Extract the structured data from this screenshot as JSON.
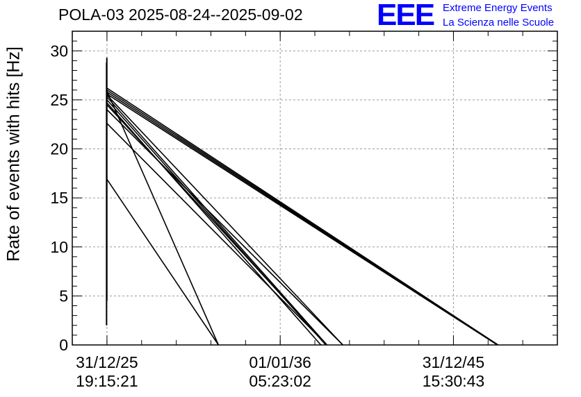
{
  "chart_data": {
    "type": "line",
    "title": "POLA-03 2025-08-24--2025-09-02",
    "ylabel": "Rate of events with hits [Hz]",
    "xlabel": "",
    "ylim": [
      0,
      32
    ],
    "yticks": [
      0,
      5,
      10,
      15,
      20,
      25,
      30
    ],
    "x_axis": "date-time",
    "xlim": [
      "31/12/23 07:18:00",
      "31/12/51 15:15:00"
    ],
    "xticks": [
      {
        "date": "31/12/25",
        "time": "19:15:21"
      },
      {
        "date": "01/01/36",
        "time": "05:23:02"
      },
      {
        "date": "31/12/45",
        "time": "15:30:43"
      }
    ],
    "grid": true,
    "line_color": "#000000",
    "vertical_spikes": [
      {
        "x": "23/12/25",
        "y_min": 2.0,
        "y_max": 28.8
      },
      {
        "x": "29/12/25",
        "y_min": 4.5,
        "y_max": 29.3
      }
    ],
    "segments": [
      {
        "x0": "31/12/25",
        "y0": 26.2,
        "x1": "02/08/48",
        "y1": 0
      },
      {
        "x0": "31/12/25",
        "y0": 26.0,
        "x1": "25/07/48",
        "y1": 0
      },
      {
        "x0": "31/12/25",
        "y0": 25.8,
        "x1": "19/07/48",
        "y1": 0
      },
      {
        "x0": "31/12/25",
        "y0": 25.6,
        "x1": "13/07/48",
        "y1": 0
      },
      {
        "x0": "31/12/25",
        "y0": 25.5,
        "x1": "14/08/39",
        "y1": 0
      },
      {
        "x0": "31/12/25",
        "y0": 25.3,
        "x1": "13/09/38",
        "y1": 0
      },
      {
        "x0": "31/12/25",
        "y0": 25.0,
        "x1": "19/08/38",
        "y1": 0
      },
      {
        "x0": "31/12/25",
        "y0": 24.7,
        "x1": "08/05/38",
        "y1": 0
      },
      {
        "x0": "31/12/25",
        "y0": 24.5,
        "x1": "13/09/38",
        "y1": 0
      },
      {
        "x0": "31/12/25",
        "y0": 24.0,
        "x1": "14/08/39",
        "y1": 0
      },
      {
        "x0": "31/12/25",
        "y0": 22.6,
        "x1": "13/09/38",
        "y1": 0
      },
      {
        "x0": "31/12/25",
        "y0": 25.9,
        "x1": "08/06/32",
        "y1": 0
      },
      {
        "x0": "31/12/25",
        "y0": 16.9,
        "x1": "08/06/32",
        "y1": 0
      }
    ]
  },
  "logo": {
    "mark": "EEE",
    "line1": "Extreme Energy Events",
    "line2": "La Scienza nelle Scuole",
    "color": "#0000ff"
  }
}
